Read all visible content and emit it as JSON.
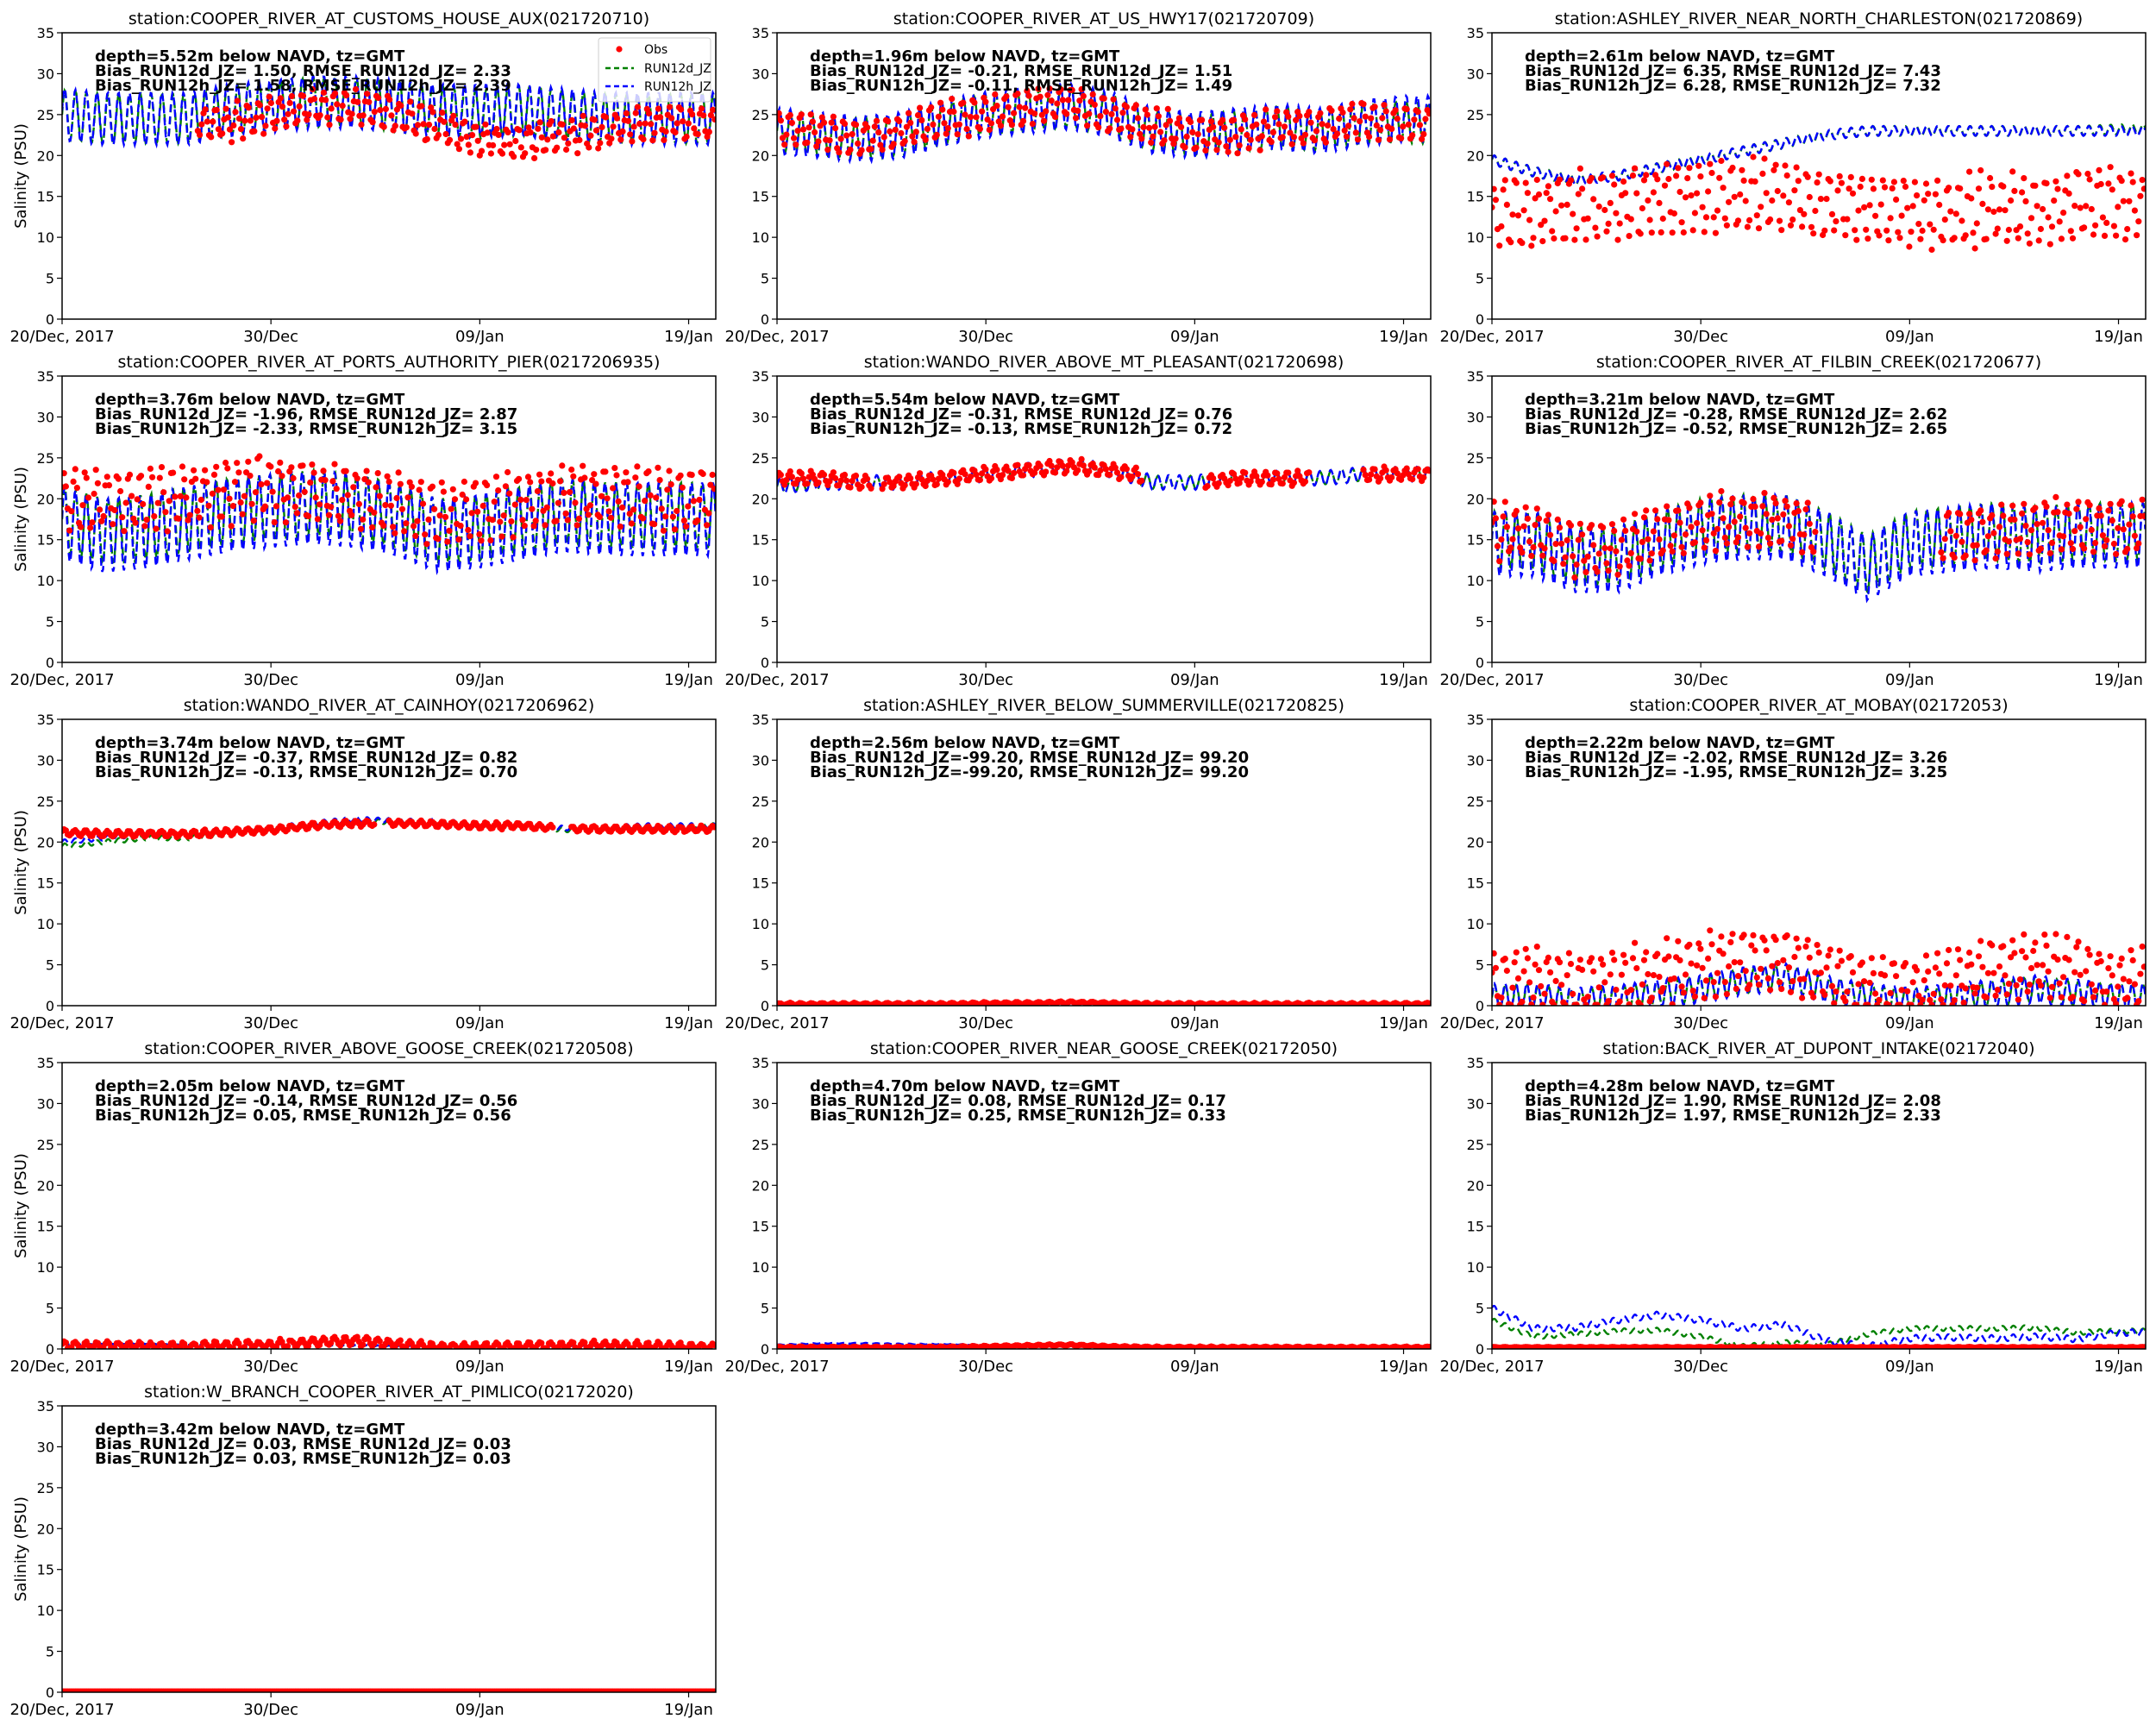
{
  "chart_data": {
    "type": "line",
    "layout": "grid 5 rows x 3 columns",
    "xlim_days": [
      0,
      31.3
    ],
    "x_start": "2017-12-20",
    "xticks": [
      {
        "day": 0,
        "label": "20/Dec, 2017"
      },
      {
        "day": 10,
        "label": "30/Dec"
      },
      {
        "day": 20,
        "label": "09/Jan"
      },
      {
        "day": 30,
        "label": "19/Jan"
      }
    ],
    "ylim": [
      0,
      35
    ],
    "yticks": [
      0,
      5,
      10,
      15,
      20,
      25,
      30,
      35
    ],
    "ylabel": "Salinity (PSU)",
    "legend": {
      "placement": "top-right",
      "entries": [
        {
          "name": "Obs",
          "color": "#ff0000",
          "style": "dots"
        },
        {
          "name": "RUN12d_JZ",
          "color": "#008000",
          "style": "dashed"
        },
        {
          "name": "RUN12h_JZ",
          "color": "#0000ff",
          "style": "dashed"
        }
      ]
    },
    "series_note": "means sampled every 2 days from day 0 to day 30; amp = tidal half-range",
    "panels": [
      {
        "title": "station:COOPER_RIVER_AT_CUSTOMS_HOUSE_AUX(021720710)",
        "stats": [
          "depth=5.52m below NAVD, tz=GMT",
          "Bias_RUN12d_JZ=  1.50, RMSE_RUN12d_JZ=  2.33",
          "Bias_RUN12h_JZ=  1.58, RMSE_RUN12h_JZ=  2.39"
        ],
        "d": {
          "mean": [
            25,
            24.5,
            24.5,
            24.5,
            25.5,
            26,
            26.5,
            26.5,
            26,
            25.5,
            25,
            25.5,
            25,
            24.5,
            24.5,
            24.5
          ],
          "amp": 3
        },
        "h": {
          "mean": [
            25,
            24.5,
            24.5,
            24.5,
            25.5,
            26,
            26.5,
            26.5,
            26,
            25.5,
            25.5,
            25.5,
            25,
            24.5,
            24.5,
            24.5
          ],
          "amp": 3.2
        },
        "obs": {
          "start": 6.5,
          "end": 31.3,
          "mean": [
            24,
            24,
            24,
            24,
            24,
            25,
            26,
            26,
            25,
            23.5,
            22,
            21.5,
            22.5,
            23,
            24,
            24
          ],
          "amp": 2.2
        }
      },
      {
        "title": "station:COOPER_RIVER_AT_US_HWY17(021720709)",
        "stats": [
          "depth=1.96m below NAVD, tz=GMT",
          "Bias_RUN12d_JZ= -0.21, RMSE_RUN12d_JZ=  1.51",
          "Bias_RUN12h_JZ= -0.11, RMSE_RUN12h_JZ=  1.49"
        ],
        "d": {
          "mean": [
            23,
            22.5,
            22,
            22.5,
            24,
            25,
            25.5,
            26,
            25,
            23,
            22.5,
            23,
            23.5,
            23,
            24,
            24
          ],
          "amp": 2.5
        },
        "h": {
          "mean": [
            23,
            22.5,
            22,
            22.5,
            24,
            25,
            25.5,
            26,
            25,
            23,
            22.5,
            23,
            23.5,
            23,
            24,
            24.5
          ],
          "amp": 2.8
        },
        "obs": {
          "start": 0,
          "end": 31.3,
          "mean": [
            23.5,
            23,
            22,
            23,
            24.5,
            25,
            26,
            26.5,
            25,
            23.5,
            22.5,
            22.5,
            23.5,
            23.5,
            24.5,
            24
          ],
          "amp": 2.3
        }
      },
      {
        "title": "station:ASHLEY_RIVER_NEAR_NORTH_CHARLESTON(021720869)",
        "stats": [
          "depth=2.61m below NAVD, tz=GMT",
          "Bias_RUN12d_JZ=  6.35, RMSE_RUN12d_JZ=  7.43",
          "Bias_RUN12h_JZ=  6.28, RMSE_RUN12h_JZ=  7.32"
        ],
        "d": {
          "mean": [
            19.5,
            18,
            17,
            17.5,
            18.5,
            19.5,
            20.5,
            21.5,
            22.5,
            23,
            23,
            23,
            23,
            23,
            23,
            23.2
          ],
          "amp": 0.6
        },
        "h": {
          "mean": [
            19.5,
            18,
            17,
            17.5,
            18.5,
            19.5,
            20.5,
            21.5,
            22.5,
            23,
            23,
            23,
            23,
            23,
            23,
            23
          ],
          "amp": 0.6
        },
        "obs": {
          "start": 0,
          "end": 31.3,
          "mean": [
            13,
            13,
            13.5,
            14,
            14.5,
            15,
            15,
            15,
            14,
            13.5,
            13,
            13,
            13.5,
            13.5,
            14,
            14
          ],
          "amp": 4.5
        }
      },
      {
        "title": "station:COOPER_RIVER_AT_PORTS_AUTHORITY_PIER(0217206935)",
        "stats": [
          "depth=3.76m below NAVD, tz=GMT",
          "Bias_RUN12d_JZ= -1.96, RMSE_RUN12d_JZ=  2.87",
          "Bias_RUN12h_JZ= -2.33, RMSE_RUN12h_JZ=  3.15"
        ],
        "d": {
          "mean": [
            17.5,
            16,
            16.5,
            17.5,
            18.5,
            19,
            19.5,
            19,
            18,
            16,
            16.5,
            17.5,
            18.5,
            18,
            18,
            18
          ],
          "amp": 4
        },
        "h": {
          "mean": [
            17,
            15.5,
            16,
            17,
            18,
            18.5,
            19,
            18.5,
            17.5,
            15.5,
            16,
            17,
            18,
            17.5,
            17.5,
            17.5
          ],
          "amp": 4.5
        },
        "obs": {
          "start": 0,
          "end": 31.3,
          "mean": [
            20,
            20,
            20,
            20.5,
            21,
            21.5,
            21,
            20.5,
            19.5,
            18,
            18.5,
            19.5,
            20.5,
            20.5,
            20,
            20
          ],
          "amp": 4
        }
      },
      {
        "title": "station:WANDO_RIVER_ABOVE_MT_PLEASANT(021720698)",
        "stats": [
          "depth=5.54m below NAVD, tz=GMT",
          "Bias_RUN12d_JZ= -0.31, RMSE_RUN12d_JZ=  0.76",
          "Bias_RUN12h_JZ= -0.13, RMSE_RUN12h_JZ=  0.72"
        ],
        "d": {
          "mean": [
            21.5,
            22,
            22,
            22,
            22.5,
            23,
            23.5,
            24,
            23.5,
            22,
            22,
            22.5,
            22.5,
            22.5,
            23,
            23
          ],
          "amp": 0.8
        },
        "h": {
          "mean": [
            21.5,
            22,
            22,
            22,
            22.5,
            23,
            23.5,
            24,
            23.5,
            22,
            22,
            22.5,
            22.5,
            22.5,
            23,
            23
          ],
          "amp": 0.9
        },
        "obs": {
          "start": 0,
          "end": 31.3,
          "gaps": [
            [
              4.5,
              5
            ],
            [
              17.5,
              20.5
            ],
            [
              25.5,
              28
            ]
          ],
          "mean": [
            22.5,
            22.5,
            22,
            22,
            22.5,
            23,
            23.5,
            24,
            23.5,
            22.5,
            22,
            22.5,
            22.5,
            22.5,
            23,
            23
          ],
          "amp": 0.9
        }
      },
      {
        "title": "station:COOPER_RIVER_AT_FILBIN_CREEK(021720677)",
        "stats": [
          "depth=3.21m below NAVD, tz=GMT",
          "Bias_RUN12d_JZ= -0.28, RMSE_RUN12d_JZ=  2.62",
          "Bias_RUN12h_JZ= -0.52, RMSE_RUN12h_JZ=  2.65"
        ],
        "d": {
          "mean": [
            15,
            15,
            13,
            13,
            15,
            16.5,
            17,
            17,
            15,
            12,
            15,
            15.5,
            16,
            15.5,
            16,
            16
          ],
          "amp": 3.5
        },
        "h": {
          "mean": [
            14.5,
            14.5,
            12.5,
            12.5,
            14.5,
            16,
            16.5,
            16.5,
            14.5,
            11.5,
            14.5,
            15,
            15.5,
            15,
            15.5,
            15.5
          ],
          "amp": 4
        },
        "obs": {
          "start": 0,
          "end": 31.3,
          "gaps": [
            [
              15.5,
              21.5
            ]
          ],
          "mean": [
            16,
            16,
            14,
            14,
            16,
            17,
            17.5,
            17.5,
            15.5,
            12.5,
            15,
            15.5,
            16,
            16.5,
            17,
            16.5
          ],
          "amp": 3.5
        }
      },
      {
        "title": "station:WANDO_RIVER_AT_CAINHOY(0217206962)",
        "stats": [
          "depth=3.74m below NAVD, tz=GMT",
          "Bias_RUN12d_JZ= -0.37, RMSE_RUN12d_JZ=  0.82",
          "Bias_RUN12h_JZ= -0.13, RMSE_RUN12h_JZ=  0.70"
        ],
        "d": {
          "mean": [
            19.5,
            20,
            20.5,
            20.5,
            21,
            21.5,
            22,
            22.5,
            22.5,
            22.5,
            22,
            22,
            21.5,
            21.5,
            21.8,
            22
          ],
          "amp": 0.3
        },
        "h": {
          "mean": [
            20,
            20.5,
            21,
            21,
            21.2,
            21.7,
            22.3,
            22.8,
            22.6,
            22.5,
            22.2,
            22,
            21.7,
            21.8,
            22,
            22
          ],
          "amp": 0.3
        },
        "obs": {
          "start": 0,
          "end": 31.3,
          "gaps": [
            [
              15,
              15.6
            ],
            [
              23.5,
              24.3
            ]
          ],
          "mean": [
            21.2,
            21,
            21,
            21,
            21.2,
            21.5,
            22,
            22.3,
            22.3,
            22.2,
            22,
            22,
            21.6,
            21.6,
            21.6,
            21.6
          ],
          "amp": 0.4
        }
      },
      {
        "title": "station:ASHLEY_RIVER_BELOW_SUMMERVILLE(021720825)",
        "stats": [
          "depth=2.56m below NAVD, tz=GMT",
          "Bias_RUN12d_JZ=-99.20, RMSE_RUN12d_JZ= 99.20",
          "Bias_RUN12h_JZ=-99.20, RMSE_RUN12h_JZ= 99.20"
        ],
        "d": {
          "mean": [
            0.2,
            0.2,
            0.2,
            0.2,
            0.2,
            0.2,
            0.2,
            0.2,
            0.2,
            0.2,
            0.2,
            0.2,
            0.2,
            0.2,
            0.2,
            0.2
          ],
          "amp": 0.05
        },
        "h": {
          "mean": [
            0.2,
            0.2,
            0.2,
            0.2,
            0.2,
            0.2,
            0.2,
            0.2,
            0.2,
            0.2,
            0.2,
            0.2,
            0.2,
            0.2,
            0.2,
            0.2
          ],
          "amp": 0.05
        },
        "obs": {
          "start": 0,
          "end": 31.3,
          "mean": [
            0.2,
            0.2,
            0.2,
            0.2,
            0.2,
            0.3,
            0.3,
            0.4,
            0.3,
            0.2,
            0.2,
            0.2,
            0.2,
            0.2,
            0.2,
            0.2
          ],
          "amp": 0.15
        }
      },
      {
        "title": "station:COOPER_RIVER_AT_MOBAY(02172053)",
        "stats": [
          "depth=2.22m below NAVD, tz=GMT",
          "Bias_RUN12d_JZ= -2.02, RMSE_RUN12d_JZ=  3.26",
          "Bias_RUN12h_JZ= -1.95, RMSE_RUN12h_JZ=  3.25"
        ],
        "d": {
          "mean": [
            1,
            1,
            0.5,
            0.8,
            1.5,
            2,
            3,
            3.5,
            2,
            1,
            0.5,
            1,
            1.5,
            2,
            1.5,
            1
          ],
          "amp": 1.5
        },
        "h": {
          "mean": [
            1,
            1,
            0.5,
            0.8,
            1.5,
            2,
            3,
            3.5,
            2,
            1,
            0.5,
            1,
            1.5,
            2,
            1.5,
            1
          ],
          "amp": 1.7
        },
        "obs": {
          "start": 0,
          "end": 31.3,
          "mean": [
            3,
            3.5,
            2.5,
            3,
            4,
            5,
            5.5,
            5.5,
            4,
            2.5,
            2,
            3,
            4.5,
            5,
            4,
            3
          ],
          "amp": 4
        }
      },
      {
        "title": "station:COOPER_RIVER_ABOVE_GOOSE_CREEK(021720508)",
        "stats": [
          "depth=2.05m below NAVD, tz=GMT",
          "Bias_RUN12d_JZ= -0.14, RMSE_RUN12d_JZ=  0.56",
          "Bias_RUN12h_JZ=  0.05, RMSE_RUN12h_JZ=  0.56"
        ],
        "d": {
          "mean": [
            0.6,
            0.7,
            0.7,
            0.6,
            0.5,
            0.5,
            0.5,
            0.4,
            0.3,
            0.3,
            0.3,
            0.3,
            0.3,
            0.3,
            0.3,
            0.3
          ],
          "amp": 0.1
        },
        "h": {
          "mean": [
            0.6,
            0.7,
            0.7,
            0.6,
            0.5,
            0.5,
            0.5,
            0.4,
            0.3,
            0.3,
            0.3,
            0.3,
            0.3,
            0.3,
            0.3,
            0.3
          ],
          "amp": 0.1
        },
        "obs": {
          "start": 0,
          "end": 31.3,
          "mean": [
            0.4,
            0.4,
            0.3,
            0.3,
            0.4,
            0.5,
            0.8,
            1,
            0.6,
            0.2,
            0.2,
            0.3,
            0.4,
            0.4,
            0.3,
            0.2
          ],
          "amp": 0.6
        }
      },
      {
        "title": "station:COOPER_RIVER_NEAR_GOOSE_CREEK(02172050)",
        "stats": [
          "depth=4.70m below NAVD, tz=GMT",
          "Bias_RUN12d_JZ=  0.08, RMSE_RUN12d_JZ=  0.17",
          "Bias_RUN12h_JZ=  0.25, RMSE_RUN12h_JZ=  0.33"
        ],
        "d": {
          "mean": [
            0.4,
            0.5,
            0.5,
            0.5,
            0.5,
            0.4,
            0.4,
            0.3,
            0.3,
            0.3,
            0.3,
            0.3,
            0.3,
            0.3,
            0.3,
            0.3
          ],
          "amp": 0.05
        },
        "h": {
          "mean": [
            0.5,
            0.7,
            0.7,
            0.6,
            0.6,
            0.5,
            0.5,
            0.4,
            0.3,
            0.3,
            0.3,
            0.3,
            0.3,
            0.3,
            0.3,
            0.3
          ],
          "amp": 0.05
        },
        "obs": {
          "start": 0,
          "end": 31.3,
          "mean": [
            0.2,
            0.2,
            0.2,
            0.2,
            0.2,
            0.3,
            0.4,
            0.5,
            0.3,
            0.2,
            0.2,
            0.2,
            0.2,
            0.2,
            0.2,
            0.2
          ],
          "amp": 0.1
        }
      },
      {
        "title": "station:BACK_RIVER_AT_DUPONT_INTAKE(02172040)",
        "stats": [
          "depth=4.28m below NAVD, tz=GMT",
          "Bias_RUN12d_JZ=  1.90, RMSE_RUN12d_JZ=  2.08",
          "Bias_RUN12h_JZ=  1.97, RMSE_RUN12h_JZ=  2.33"
        ],
        "d": {
          "mean": [
            3.5,
            1.5,
            1.8,
            2.2,
            2.3,
            1.5,
            0.3,
            0.8,
            0.5,
            1.8,
            2.5,
            2.5,
            2.5,
            2.6,
            2,
            2.2
          ],
          "amp": 0.3
        },
        "h": {
          "mean": [
            5,
            2.5,
            2.6,
            3.5,
            4.2,
            3.5,
            2.5,
            3,
            1,
            0.3,
            1.3,
            1.4,
            1.3,
            1.5,
            1.2,
            2
          ],
          "amp": 0.4
        },
        "obs": {
          "start": 0,
          "end": 31.3,
          "mean": [
            0.2,
            0.2,
            0.2,
            0.2,
            0.2,
            0.2,
            0.2,
            0.2,
            0.2,
            0.2,
            0.2,
            0.2,
            0.2,
            0.2,
            0.2,
            0.2
          ],
          "amp": 0.05
        }
      },
      {
        "title": "station:W_BRANCH_COOPER_RIVER_AT_PIMLICO(02172020)",
        "stats": [
          "depth=3.42m below NAVD, tz=GMT",
          "Bias_RUN12d_JZ=  0.03, RMSE_RUN12d_JZ=  0.03",
          "Bias_RUN12h_JZ=  0.03, RMSE_RUN12h_JZ=  0.03"
        ],
        "d": {
          "mean": [
            0.1,
            0.1,
            0.1,
            0.1,
            0.1,
            0.1,
            0.1,
            0.1,
            0.1,
            0.1,
            0.1,
            0.1,
            0.1,
            0.1,
            0.1,
            0.1
          ],
          "amp": 0.0
        },
        "h": {
          "mean": [
            0.1,
            0.1,
            0.1,
            0.1,
            0.1,
            0.1,
            0.1,
            0.1,
            0.1,
            0.1,
            0.1,
            0.1,
            0.1,
            0.1,
            0.1,
            0.1
          ],
          "amp": 0.0
        },
        "obs": {
          "start": 0,
          "end": 31.3,
          "mean": [
            0.1,
            0.1,
            0.1,
            0.1,
            0.1,
            0.1,
            0.1,
            0.1,
            0.1,
            0.1,
            0.1,
            0.1,
            0.1,
            0.1,
            0.1,
            0.1
          ],
          "amp": 0.0
        }
      }
    ]
  }
}
